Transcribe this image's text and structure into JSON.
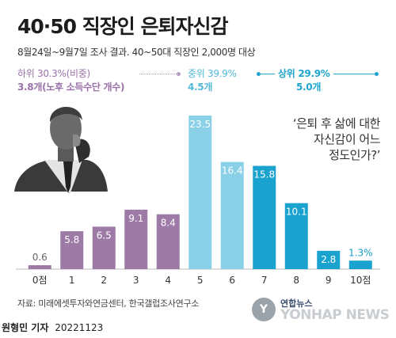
{
  "header": {
    "title": "40·50 직장인 은퇴자신감",
    "subtitle": "8월24일~9월7일 조사 결과. 40~50대 직장인 2,000명 대상"
  },
  "groups": {
    "low": {
      "label": "하위 30.3%(비중)",
      "avg": "3.8개(노후 소득수단 개수)"
    },
    "mid": {
      "label": "중위 39.9%",
      "avg": "4.5개"
    },
    "high": {
      "label": "상위 29.9%",
      "avg": "5.0개"
    }
  },
  "question": [
    "‘은퇴 후 삶에 대한",
    "자신감이 어느",
    "정도인가?’"
  ],
  "chart_data": {
    "type": "bar",
    "categories": [
      "0점",
      "1",
      "2",
      "3",
      "4",
      "5",
      "6",
      "7",
      "8",
      "9",
      "10점"
    ],
    "values": [
      0.6,
      5.8,
      6.5,
      9.1,
      8.4,
      23.5,
      16.4,
      15.8,
      10.1,
      2.8,
      1.3
    ],
    "value_labels": [
      "0.6",
      "5.8",
      "6.5",
      "9.1",
      "8.4",
      "23.5",
      "16.4",
      "15.8",
      "10.1",
      "2.8",
      "1.3%"
    ],
    "unit": "%",
    "ylim": [
      0,
      25
    ],
    "colors": [
      "#9d7ba6",
      "#9d7ba6",
      "#9d7ba6",
      "#9d7ba6",
      "#9d7ba6",
      "#8ad0e6",
      "#8ad0e6",
      "#1aa3cf",
      "#1aa3cf",
      "#1aa3cf",
      "#1aa3cf"
    ],
    "label_colors": [
      "#666666",
      "#ffffff",
      "#ffffff",
      "#ffffff",
      "#ffffff",
      "#ffffff",
      "#ffffff",
      "#ffffff",
      "#ffffff",
      "#ffffff",
      "#1a9dc9"
    ]
  },
  "footer": {
    "source": "자료: 미래에셋투자와연금센터, 한국갤럽조사연구소",
    "reporter": "원형민 기자",
    "date": "20221123"
  },
  "watermark": {
    "kr": "연합뉴스",
    "en": "YONHAP NEWS",
    "logo": "Y"
  }
}
